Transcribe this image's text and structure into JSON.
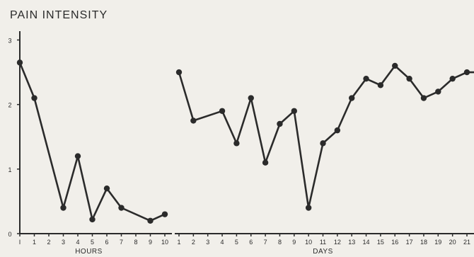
{
  "chart_data": {
    "type": "line",
    "title": "PAIN INTENSITY",
    "ylabel": "",
    "ylim": [
      0,
      3.4
    ],
    "yticks": [
      "0",
      "1",
      "2",
      "3"
    ],
    "colors": {
      "line": "#2b2b2b",
      "background": "#f1efea"
    },
    "grid": false,
    "legend": "none",
    "panels": [
      {
        "name": "hours",
        "xlabel": "HOURS",
        "xticks": [
          "I",
          "1",
          "2",
          "3",
          "4",
          "5",
          "6",
          "7",
          "8",
          "9",
          "10"
        ],
        "x": [
          0,
          1,
          3,
          4,
          5,
          6,
          7,
          9,
          10
        ],
        "values": [
          2.65,
          2.1,
          0.4,
          1.2,
          0.22,
          0.7,
          0.4,
          0.2,
          0.3
        ]
      },
      {
        "name": "days",
        "xlabel": "DAYS",
        "xticks": [
          "1",
          "2",
          "3",
          "4",
          "5",
          "6",
          "7",
          "8",
          "9",
          "10",
          "11",
          "12",
          "13",
          "14",
          "15",
          "16",
          "17",
          "18",
          "19",
          "20",
          "21"
        ],
        "x": [
          0,
          1,
          3,
          4,
          5,
          6,
          7,
          8,
          9,
          10,
          11,
          12,
          13,
          14,
          15,
          16,
          17,
          18,
          19,
          20,
          21
        ],
        "values": [
          2.5,
          1.75,
          1.9,
          1.4,
          2.1,
          1.1,
          1.7,
          1.9,
          0.4,
          1.4,
          1.6,
          2.1,
          2.4,
          2.3,
          2.6,
          2.4,
          2.1,
          2.2,
          2.4,
          2.5,
          2.5
        ]
      }
    ]
  }
}
